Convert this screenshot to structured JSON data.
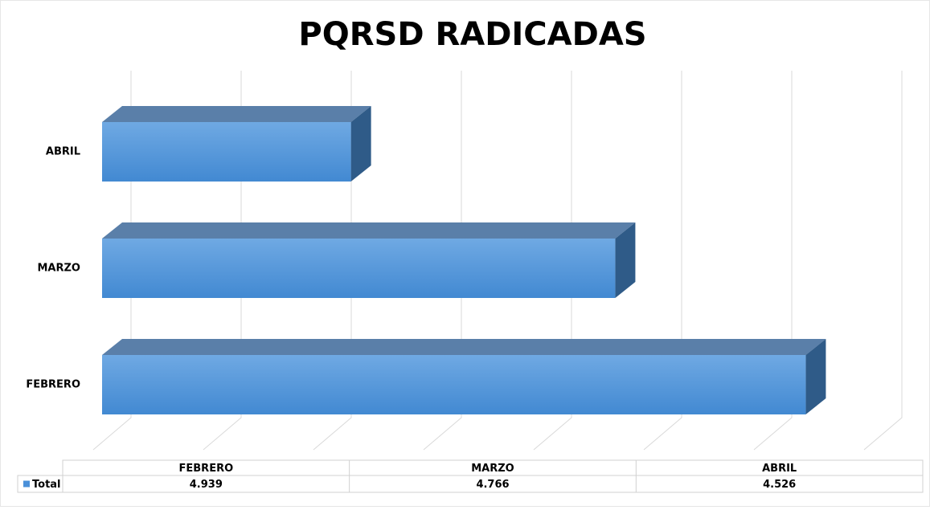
{
  "chart_data": {
    "type": "bar3d_horizontal",
    "title": "PQRSD RADICADAS",
    "categories": [
      "FEBRERO",
      "MARZO",
      "ABRIL"
    ],
    "series": [
      {
        "name": "Total",
        "color": "#4a90d9",
        "values": [
          4939,
          4766,
          4526
        ],
        "value_labels": [
          "4.939",
          "4.766",
          "4.526"
        ]
      }
    ],
    "xlim": [
      4300,
      5000
    ],
    "xticks": [
      4300,
      4400,
      4500,
      4600,
      4700,
      4800,
      4900,
      5000
    ],
    "grid": true,
    "legend": "table"
  }
}
